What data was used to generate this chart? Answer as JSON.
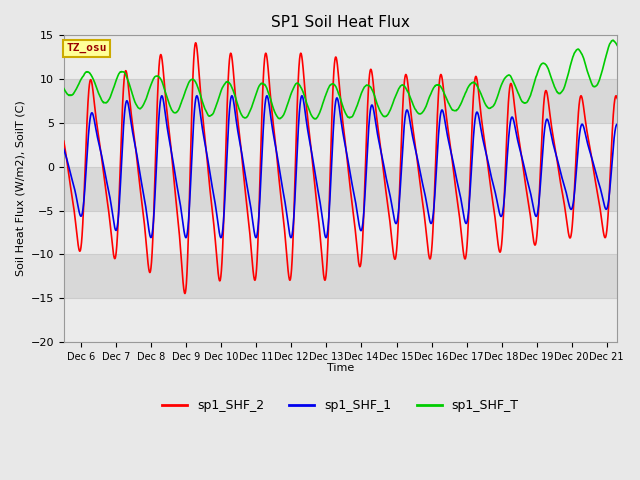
{
  "title": "SP1 Soil Heat Flux",
  "ylabel": "Soil Heat Flux (W/m2), SoilT (C)",
  "xlabel": "Time",
  "ylim": [
    -20,
    15
  ],
  "xlim_days": [
    5.5,
    21.3
  ],
  "xtick_days": [
    6,
    7,
    8,
    9,
    10,
    11,
    12,
    13,
    14,
    15,
    16,
    17,
    18,
    19,
    20,
    21
  ],
  "xtick_labels": [
    "Dec 6",
    "Dec 7",
    "Dec 8",
    "Dec 9",
    "Dec 10",
    "Dec 11",
    "Dec 12",
    "Dec 13",
    "Dec 14",
    "Dec 15",
    "Dec 16",
    "Dec 17",
    "Dec 18",
    "Dec 19",
    "Dec 20",
    "Dec 21"
  ],
  "color_red": "#ff0000",
  "color_blue": "#0000ee",
  "color_green": "#00cc00",
  "bg_color": "#e8e8e8",
  "band_light": "#ebebeb",
  "band_dark": "#d8d8d8",
  "grid_color": "#cccccc",
  "legend_labels": [
    "sp1_SHF_2",
    "sp1_SHF_1",
    "sp1_SHF_T"
  ],
  "tz_label": "TZ_osu",
  "tz_bg": "#ffff99",
  "tz_text_color": "#990000",
  "line_width": 1.2,
  "yticks": [
    -20,
    -15,
    -10,
    -5,
    0,
    5,
    10,
    15
  ]
}
